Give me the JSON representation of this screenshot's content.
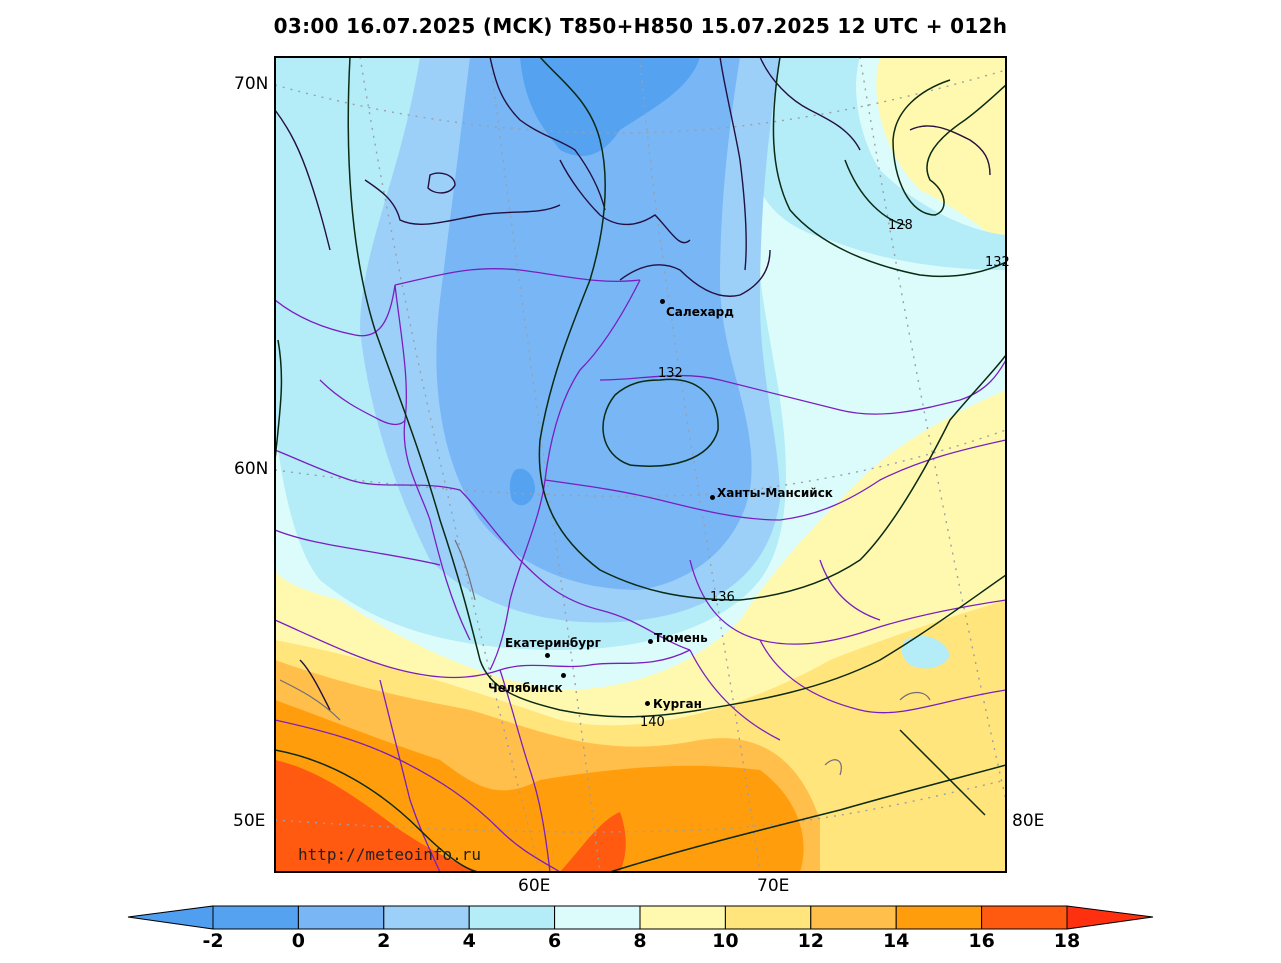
{
  "title": "03:00 16.07.2025 (MCK) T850+H850 15.07.2025 12 UTC + 012h",
  "watermark": "http://meteoinfo.ru",
  "lat_labels": [
    "70N",
    "60N",
    "50E"
  ],
  "lon_labels": [
    "60E",
    "70E",
    "80E"
  ],
  "cities": [
    {
      "name": "Салехард"
    },
    {
      "name": "Ханты-Мансийск"
    },
    {
      "name": "Екатеринбург"
    },
    {
      "name": "Тюмень"
    },
    {
      "name": "Челябинск"
    },
    {
      "name": "Курган"
    }
  ],
  "isolines": [
    "128",
    "132",
    "132",
    "136",
    "140"
  ],
  "colorbar": {
    "labels": [
      "-2",
      "0",
      "2",
      "4",
      "6",
      "8",
      "10",
      "12",
      "14",
      "16",
      "18"
    ],
    "colors": [
      "#4f9ef0",
      "#55a2f0",
      "#78b6f5",
      "#9dd0f8",
      "#b4ecf8",
      "#dcfcfc",
      "#fff9b0",
      "#ffe57c",
      "#ffbf4a",
      "#ff9d0c",
      "#ff5a10",
      "#ff3010"
    ]
  },
  "colors": {
    "cold_deep": "#55a2f0",
    "cold_mid": "#78b6f5",
    "cold_light": "#9dd0f8",
    "cool": "#b4ecf8",
    "neutral": "#dcfcfc",
    "warm_light": "#fff9b0",
    "warm": "#ffe57c",
    "warm_mid": "#ffbf4a",
    "hot": "#ff9d0c",
    "hottest": "#ff5a10",
    "border": "#7a1fbf",
    "coast": "#241040",
    "isoline": "#0a2a14",
    "grid": "#9aa0a8"
  }
}
